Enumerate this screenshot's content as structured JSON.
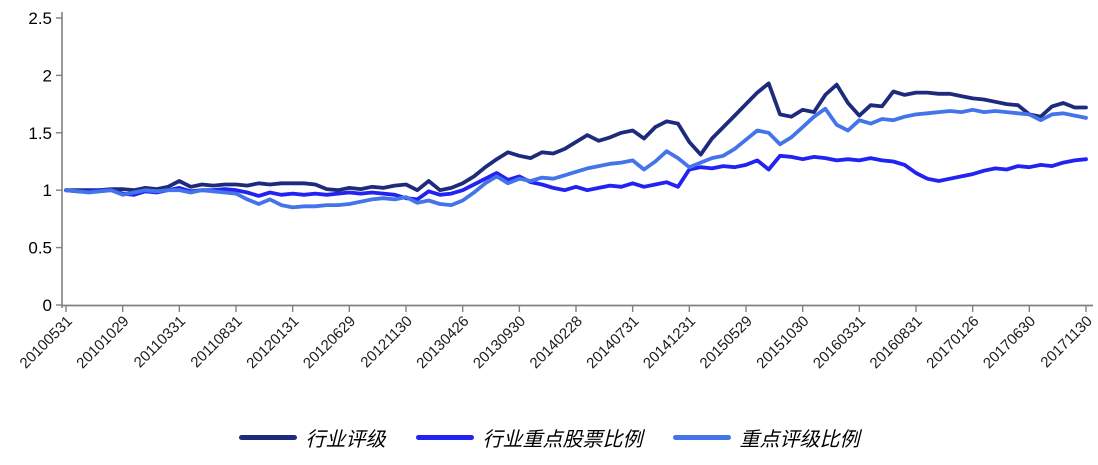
{
  "chart_data": {
    "type": "line",
    "title": "",
    "xlabel": "",
    "ylabel": "",
    "ylim": [
      0,
      2.5
    ],
    "y_tick_labels": [
      "0",
      "0.5",
      "1",
      "1.5",
      "2",
      "2.5"
    ],
    "y_tick_values": [
      0,
      0.5,
      1,
      1.5,
      2,
      2.5
    ],
    "grid": false,
    "legend_position": "bottom-center",
    "axis_color": "#808080",
    "x_tick_labels": [
      "20100531",
      "20101029",
      "20110331",
      "20110831",
      "20120131",
      "20120629",
      "20121130",
      "20130426",
      "20130930",
      "20140228",
      "20140731",
      "20141231",
      "20150529",
      "20151030",
      "20160331",
      "20160831",
      "20170126",
      "20170630",
      "20171130"
    ],
    "x_range": {
      "start": "20100531",
      "end": "20171130",
      "points_per_tick_interval": 5,
      "sampling": "monthly estimates read from plot"
    },
    "series": [
      {
        "id": "industry-rating",
        "name": "行业评级",
        "color": "#1E2B7D",
        "values": [
          1.0,
          1.0,
          1.0,
          1.0,
          1.01,
          1.01,
          1.0,
          1.02,
          1.01,
          1.03,
          1.08,
          1.03,
          1.05,
          1.04,
          1.05,
          1.05,
          1.04,
          1.06,
          1.05,
          1.06,
          1.06,
          1.06,
          1.05,
          1.01,
          1.0,
          1.02,
          1.01,
          1.03,
          1.02,
          1.04,
          1.05,
          1.0,
          1.08,
          1.0,
          1.02,
          1.06,
          1.12,
          1.2,
          1.27,
          1.33,
          1.3,
          1.28,
          1.33,
          1.32,
          1.36,
          1.42,
          1.48,
          1.43,
          1.46,
          1.5,
          1.52,
          1.45,
          1.55,
          1.6,
          1.58,
          1.42,
          1.31,
          1.45,
          1.55,
          1.65,
          1.75,
          1.85,
          1.93,
          1.66,
          1.64,
          1.7,
          1.68,
          1.83,
          1.92,
          1.76,
          1.65,
          1.74,
          1.73,
          1.86,
          1.83,
          1.85,
          1.85,
          1.84,
          1.84,
          1.82,
          1.8,
          1.79,
          1.77,
          1.75,
          1.74,
          1.66,
          1.64,
          1.73,
          1.76,
          1.72,
          1.72
        ]
      },
      {
        "id": "key-stock-ratio",
        "name": "行业重点股票比例",
        "color": "#2222F2",
        "values": [
          1.0,
          0.99,
          0.99,
          1.0,
          1.0,
          0.97,
          0.96,
          0.99,
          0.98,
          1.0,
          1.02,
          0.99,
          1.0,
          1.0,
          1.01,
          1.0,
          0.98,
          0.95,
          0.98,
          0.96,
          0.97,
          0.96,
          0.97,
          0.96,
          0.97,
          0.98,
          0.97,
          0.98,
          0.97,
          0.96,
          0.93,
          0.92,
          0.99,
          0.96,
          0.97,
          1.0,
          1.05,
          1.1,
          1.15,
          1.09,
          1.12,
          1.07,
          1.05,
          1.02,
          1.0,
          1.03,
          1.0,
          1.02,
          1.04,
          1.03,
          1.06,
          1.03,
          1.05,
          1.07,
          1.03,
          1.18,
          1.2,
          1.19,
          1.21,
          1.2,
          1.22,
          1.26,
          1.18,
          1.3,
          1.29,
          1.27,
          1.29,
          1.28,
          1.26,
          1.27,
          1.26,
          1.28,
          1.26,
          1.25,
          1.22,
          1.15,
          1.1,
          1.08,
          1.1,
          1.12,
          1.14,
          1.17,
          1.19,
          1.18,
          1.21,
          1.2,
          1.22,
          1.21,
          1.24,
          1.26,
          1.27
        ]
      },
      {
        "id": "key-rating-ratio",
        "name": "重点评级比例",
        "color": "#4474E9",
        "values": [
          1.0,
          0.99,
          0.98,
          0.99,
          1.0,
          0.96,
          0.98,
          1.0,
          0.99,
          1.0,
          1.0,
          0.98,
          1.0,
          0.99,
          0.98,
          0.97,
          0.92,
          0.88,
          0.92,
          0.87,
          0.85,
          0.86,
          0.86,
          0.87,
          0.87,
          0.88,
          0.9,
          0.92,
          0.93,
          0.92,
          0.94,
          0.89,
          0.91,
          0.88,
          0.87,
          0.91,
          0.98,
          1.06,
          1.12,
          1.06,
          1.1,
          1.08,
          1.11,
          1.1,
          1.13,
          1.16,
          1.19,
          1.21,
          1.23,
          1.24,
          1.26,
          1.18,
          1.25,
          1.34,
          1.28,
          1.2,
          1.24,
          1.28,
          1.3,
          1.36,
          1.44,
          1.52,
          1.5,
          1.4,
          1.46,
          1.55,
          1.64,
          1.71,
          1.57,
          1.52,
          1.61,
          1.58,
          1.62,
          1.61,
          1.64,
          1.66,
          1.67,
          1.68,
          1.69,
          1.68,
          1.7,
          1.68,
          1.69,
          1.68,
          1.67,
          1.66,
          1.61,
          1.66,
          1.67,
          1.65,
          1.63
        ]
      }
    ]
  }
}
